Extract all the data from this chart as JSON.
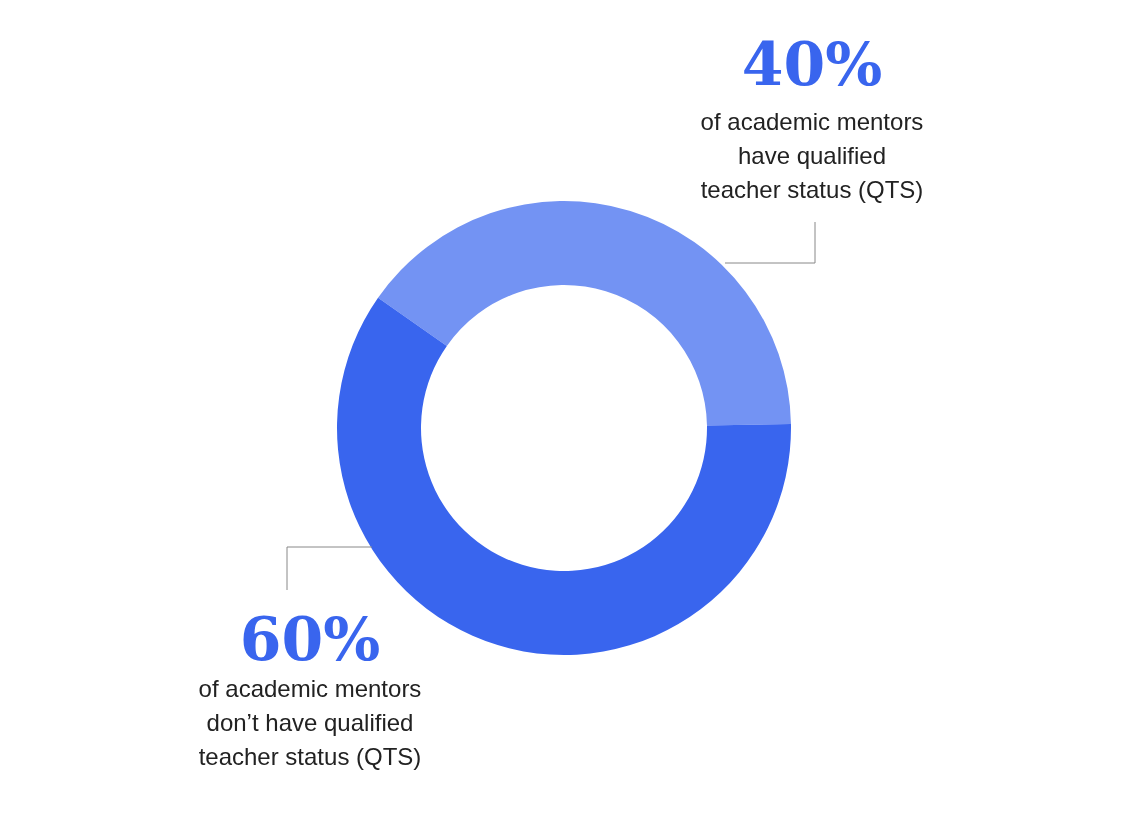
{
  "chart_data": {
    "type": "donut",
    "categories": [
      "of academic mentors\nhave qualified\nteacher status (QTS)",
      "of academic mentors\ndon’t have qualified\nteacher status (QTS)"
    ],
    "values": [
      40,
      60
    ],
    "colors": [
      "#7393f3",
      "#3965ee"
    ],
    "value_labels": [
      "40%",
      "60%"
    ]
  }
}
